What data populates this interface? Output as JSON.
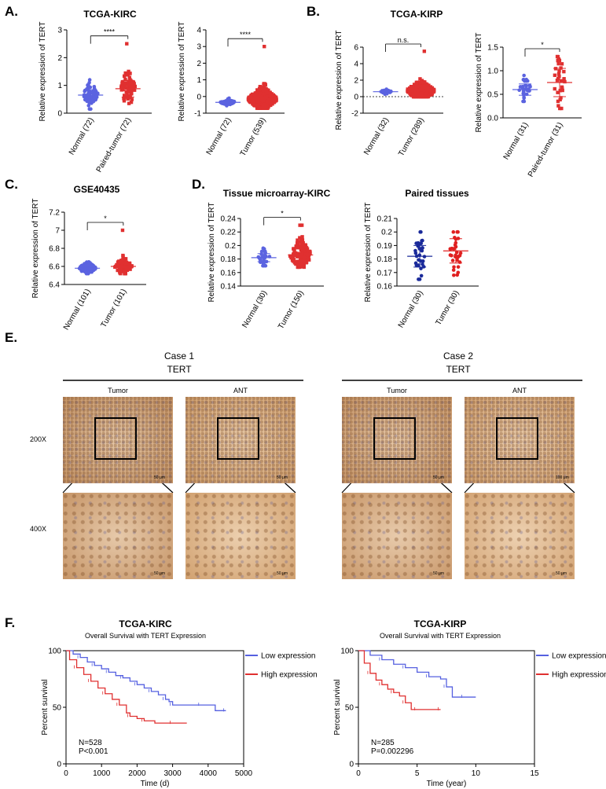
{
  "panels": {
    "A": "A.",
    "B": "B.",
    "C": "C.",
    "D": "D.",
    "E": "E.",
    "F": "F."
  },
  "chart_data": [
    {
      "id": "A1",
      "type": "scatter",
      "title": "TCGA-KIRC",
      "ylabel": "Relative expression of TERT",
      "ylim": [
        0,
        3
      ],
      "yticks": [
        0,
        1,
        2,
        3
      ],
      "categories": [
        "Normal (72)",
        "Paired-tumor (72)"
      ],
      "groups": [
        {
          "mean": 0.65,
          "sd": 0.2,
          "min": 0.15,
          "max": 1.2,
          "n": 72,
          "color": "#5b63e0",
          "marker": "circle"
        },
        {
          "mean": 0.88,
          "sd": 0.3,
          "min": 0.35,
          "max": 2.5,
          "n": 72,
          "color": "#e03030",
          "marker": "square"
        }
      ],
      "significance": "****"
    },
    {
      "id": "A2",
      "type": "scatter",
      "title": "",
      "ylabel": "Relative expression of TERT",
      "ylim": [
        -1,
        4
      ],
      "yticks": [
        -1,
        0,
        1,
        2,
        3,
        4
      ],
      "categories": [
        "Normal (72)",
        "Tumor (539)"
      ],
      "groups": [
        {
          "mean": -0.35,
          "sd": 0.08,
          "min": -0.55,
          "max": -0.1,
          "n": 72,
          "color": "#5b63e0",
          "marker": "circle"
        },
        {
          "mean": -0.15,
          "sd": 0.3,
          "min": -0.7,
          "max": 3.0,
          "n": 539,
          "color": "#e03030",
          "marker": "square"
        }
      ],
      "significance": "****"
    },
    {
      "id": "B1",
      "type": "scatter",
      "title": "TCGA-KIRP",
      "ylabel": "Relative expression of TERT",
      "ylim": [
        -2,
        6
      ],
      "yticks": [
        -2,
        0,
        2,
        4,
        6
      ],
      "categories": [
        "Normal (32)",
        "Tumor (289)"
      ],
      "groups": [
        {
          "mean": 0.6,
          "sd": 0.1,
          "min": 0.3,
          "max": 0.9,
          "n": 32,
          "color": "#5b63e0",
          "marker": "circle"
        },
        {
          "mean": 0.7,
          "sd": 0.5,
          "min": 0.0,
          "max": 5.5,
          "n": 289,
          "color": "#e03030",
          "marker": "square"
        }
      ],
      "significance": "n.s.",
      "zero_line": true
    },
    {
      "id": "B2",
      "type": "scatter",
      "title": "",
      "ylabel": "Relative expression of TERT",
      "ylim": [
        0,
        1.5
      ],
      "yticks": [
        0.0,
        0.5,
        1.0,
        1.5
      ],
      "categories": [
        "Normal (31)",
        "Paired-tumor (31)"
      ],
      "groups": [
        {
          "mean": 0.6,
          "sd": 0.12,
          "min": 0.35,
          "max": 0.9,
          "n": 31,
          "color": "#5b63e0",
          "marker": "circle"
        },
        {
          "mean": 0.75,
          "sd": 0.3,
          "min": 0.2,
          "max": 1.3,
          "n": 31,
          "color": "#e03030",
          "marker": "square"
        }
      ],
      "significance": "*"
    },
    {
      "id": "C1",
      "type": "scatter",
      "title": "GSE40435",
      "ylabel": "Relative expression of TERT",
      "ylim": [
        6.4,
        7.2
      ],
      "yticks": [
        6.4,
        6.6,
        6.8,
        7.0,
        7.2
      ],
      "categories": [
        "Normal (101)",
        "Tumor (101)"
      ],
      "groups": [
        {
          "mean": 6.58,
          "sd": 0.03,
          "min": 6.52,
          "max": 6.65,
          "n": 101,
          "color": "#5b63e0",
          "marker": "circle"
        },
        {
          "mean": 6.6,
          "sd": 0.04,
          "min": 6.52,
          "max": 7.0,
          "n": 101,
          "color": "#e03030",
          "marker": "square"
        }
      ],
      "significance": "*"
    },
    {
      "id": "D1",
      "type": "scatter",
      "title": "Tissue microarray-KIRC",
      "ylabel": "Relative expression of TERT",
      "ylim": [
        0.14,
        0.24
      ],
      "yticks": [
        0.14,
        0.16,
        0.18,
        0.2,
        0.22,
        0.24
      ],
      "categories": [
        "Normal (30)",
        "Tumor (150)"
      ],
      "groups": [
        {
          "mean": 0.182,
          "sd": 0.006,
          "min": 0.17,
          "max": 0.196,
          "n": 30,
          "color": "#5b63e0",
          "marker": "circle"
        },
        {
          "mean": 0.186,
          "sd": 0.01,
          "min": 0.168,
          "max": 0.23,
          "n": 150,
          "color": "#e03030",
          "marker": "square"
        }
      ],
      "significance": "*"
    },
    {
      "id": "D2",
      "type": "scatter",
      "title": "Paired tissues",
      "ylabel": "Relative expression of TERT",
      "ylim": [
        0.16,
        0.21
      ],
      "yticks": [
        0.16,
        0.17,
        0.18,
        0.19,
        0.2,
        0.21
      ],
      "categories": [
        "Normal (30)",
        "Tumor (30)"
      ],
      "groups": [
        {
          "mean": 0.182,
          "sd": 0.008,
          "min": 0.165,
          "max": 0.2,
          "n": 30,
          "color": "#1a2a9a",
          "marker": "circle",
          "hollow": false
        },
        {
          "mean": 0.186,
          "sd": 0.009,
          "min": 0.168,
          "max": 0.2,
          "n": 30,
          "color": "#e02020",
          "marker": "circle"
        }
      ],
      "significance": ""
    },
    {
      "id": "F1",
      "type": "line",
      "title": "TCGA-KIRC",
      "subtitle": "Overall Survival with TERT Expression",
      "ylabel": "Percent survival",
      "xlabel": "Time (d)",
      "xlim": [
        0,
        5000
      ],
      "ylim": [
        0,
        100
      ],
      "xticks": [
        0,
        1000,
        2000,
        3000,
        4000,
        5000
      ],
      "yticks": [
        0,
        50,
        100
      ],
      "annotation": [
        "N=528",
        "P<0.001"
      ],
      "series": [
        {
          "name": "Low expression",
          "color": "#5560e0",
          "x": [
            0,
            200,
            400,
            600,
            800,
            1000,
            1200,
            1400,
            1600,
            1800,
            2000,
            2200,
            2400,
            2600,
            2800,
            2900,
            3000,
            3400,
            3800,
            4200,
            4500
          ],
          "y": [
            100,
            97,
            94,
            90,
            87,
            84,
            81,
            78,
            76,
            73,
            70,
            67,
            64,
            61,
            57,
            55,
            52,
            52,
            52,
            47,
            47
          ]
        },
        {
          "name": "High expression",
          "color": "#e03030",
          "x": [
            0,
            100,
            300,
            500,
            700,
            900,
            1100,
            1300,
            1500,
            1700,
            1800,
            2000,
            2200,
            2500,
            3000,
            3400
          ],
          "y": [
            100,
            92,
            85,
            79,
            73,
            67,
            62,
            57,
            52,
            45,
            42,
            40,
            38,
            36,
            36,
            36
          ]
        }
      ]
    },
    {
      "id": "F2",
      "type": "line",
      "title": "TCGA-KIRP",
      "subtitle": "Overall Survival with TERT Expression",
      "ylabel": "Percent survival",
      "xlabel": "Time (year)",
      "xlim": [
        0,
        15
      ],
      "ylim": [
        0,
        100
      ],
      "xticks": [
        0,
        5,
        10,
        15
      ],
      "yticks": [
        0,
        50,
        100
      ],
      "annotation": [
        "N=285",
        "P=0.002296"
      ],
      "series": [
        {
          "name": "Low expression",
          "color": "#5560e0",
          "x": [
            0,
            1,
            2,
            3,
            4,
            5,
            6,
            7,
            7.5,
            8,
            9,
            10
          ],
          "y": [
            100,
            96,
            92,
            88,
            85,
            81,
            77,
            75,
            68,
            59,
            59,
            59
          ]
        },
        {
          "name": "High expression",
          "color": "#e03030",
          "x": [
            0,
            0.5,
            1,
            1.5,
            2,
            2.5,
            3,
            3.5,
            4,
            4.5,
            5,
            6,
            7
          ],
          "y": [
            100,
            89,
            80,
            74,
            70,
            66,
            63,
            60,
            54,
            48,
            48,
            48,
            48
          ]
        }
      ]
    }
  ],
  "panel_E": {
    "cases": [
      {
        "title": "Case 1",
        "marker": "TERT",
        "cols": [
          "Tumor",
          "ANT"
        ]
      },
      {
        "title": "Case 2",
        "marker": "TERT",
        "cols": [
          "Tumor",
          "ANT"
        ]
      }
    ],
    "rows": [
      "200X",
      "400X"
    ],
    "scalebars": [
      "50 μm",
      "50 μm",
      "50 μm",
      "50 μm",
      "50 μm",
      "50 μm",
      "100 μm",
      "50 μm"
    ]
  }
}
